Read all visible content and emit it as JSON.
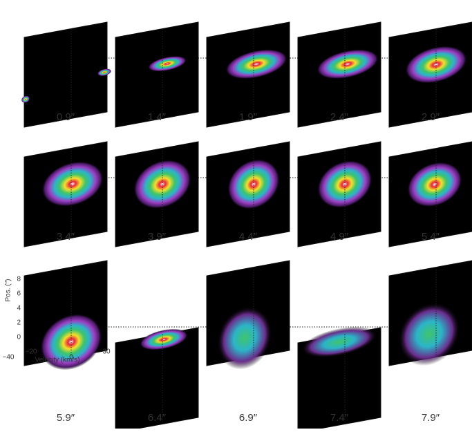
{
  "panels": [
    {
      "label": "0.9″"
    },
    {
      "label": "1.4″"
    },
    {
      "label": "1.9″"
    },
    {
      "label": "2.4″"
    },
    {
      "label": "2.9″"
    },
    {
      "label": "3.4″"
    },
    {
      "label": "3.9″"
    },
    {
      "label": "4.4″"
    },
    {
      "label": "4.9″"
    },
    {
      "label": "5.4″"
    },
    {
      "label": "5.9″"
    },
    {
      "label": "6.4″"
    },
    {
      "label": "6.9″"
    },
    {
      "label": "7.4″"
    },
    {
      "label": "7.9″"
    }
  ],
  "axes": {
    "y_label": "Pos. (″)",
    "x_label": "Velocity (km/s)",
    "yticks": [
      "0",
      "2",
      "4",
      "6",
      "8"
    ],
    "xticks": [
      "−40",
      "−20",
      "0",
      "30"
    ]
  }
}
